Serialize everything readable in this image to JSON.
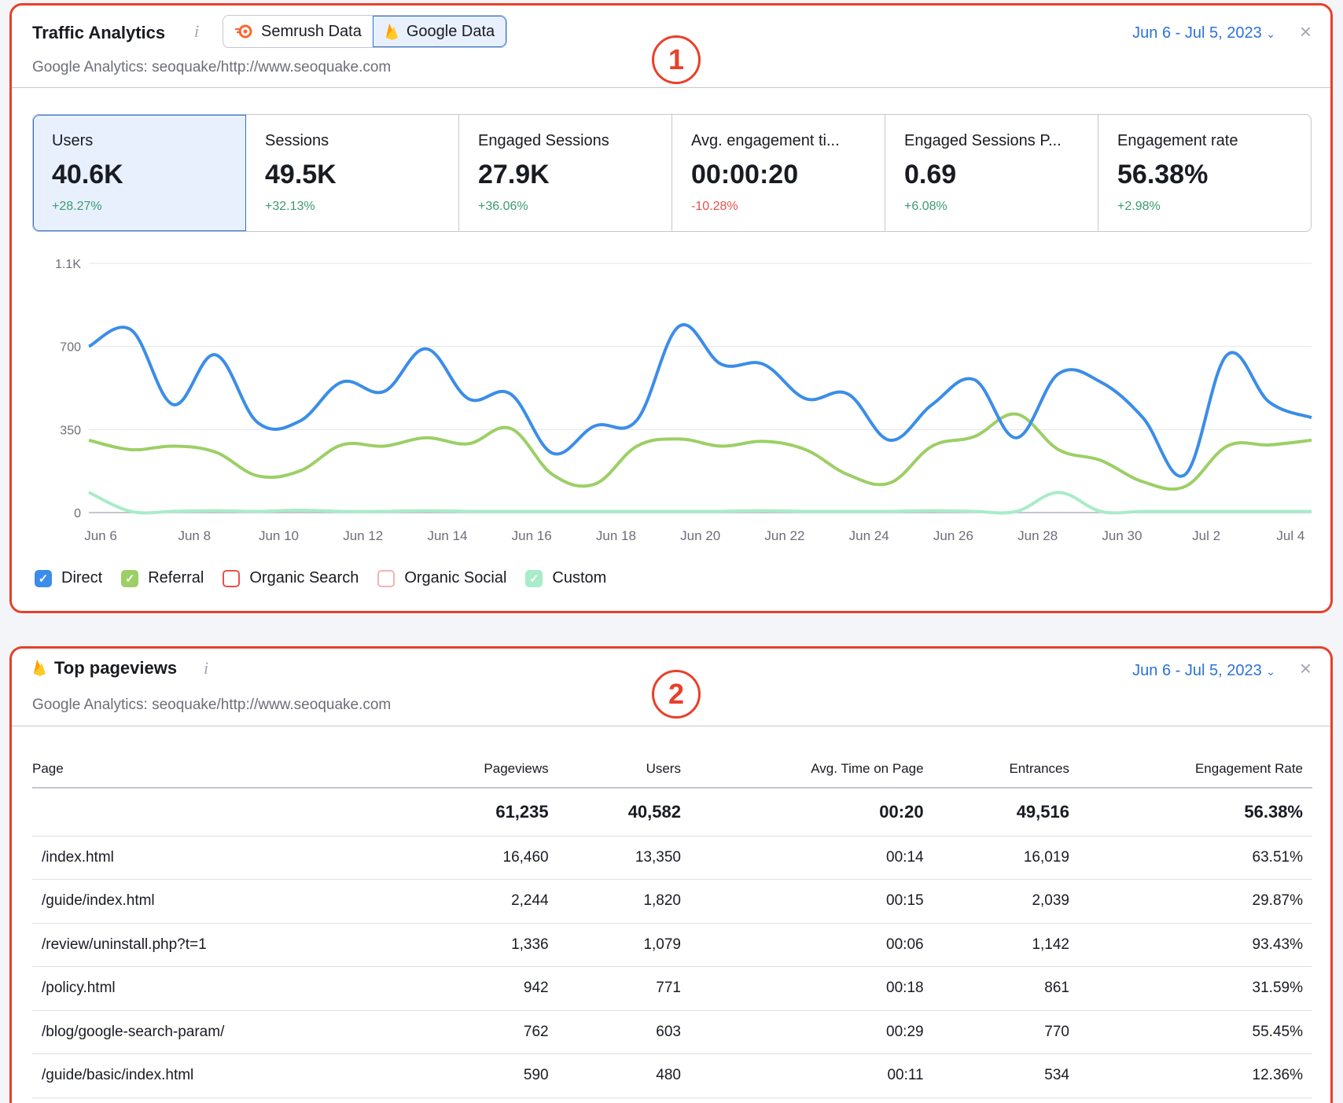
{
  "traffic": {
    "title": "Traffic Analytics",
    "info": "i",
    "toggle": [
      {
        "label": "Semrush Data",
        "icon": "semrush-logo-icon",
        "active": false
      },
      {
        "label": "Google Data",
        "icon": "firebase-logo-icon",
        "active": true
      }
    ],
    "subtitle": "Google Analytics: seoquake/http://www.seoquake.com",
    "date_range": "Jun 6 - Jul 5, 2023",
    "close": "×",
    "marker": "1",
    "metrics": [
      {
        "label": "Users",
        "value": "40.6K",
        "delta": "+28.27%",
        "trend": "up",
        "active": true
      },
      {
        "label": "Sessions",
        "value": "49.5K",
        "delta": "+32.13%",
        "trend": "up"
      },
      {
        "label": "Engaged Sessions",
        "value": "27.9K",
        "delta": "+36.06%",
        "trend": "up"
      },
      {
        "label": "Avg. engagement ti...",
        "value": "00:00:20",
        "delta": "-10.28%",
        "trend": "down"
      },
      {
        "label": "Engaged Sessions P...",
        "value": "0.69",
        "delta": "+6.08%",
        "trend": "up"
      },
      {
        "label": "Engagement rate",
        "value": "56.38%",
        "delta": "+2.98%",
        "trend": "up"
      }
    ],
    "colors": {
      "up": "#3a9b6f",
      "down": "#e8504a",
      "accent": "#2b72d9",
      "marker": "#e8402a"
    }
  },
  "chart_data": {
    "type": "line",
    "x": [
      "Jun 6",
      "Jun 7",
      "Jun 8",
      "Jun 9",
      "Jun 10",
      "Jun 11",
      "Jun 12",
      "Jun 13",
      "Jun 14",
      "Jun 15",
      "Jun 16",
      "Jun 17",
      "Jun 18",
      "Jun 19",
      "Jun 20",
      "Jun 21",
      "Jun 22",
      "Jun 23",
      "Jun 24",
      "Jun 25",
      "Jun 26",
      "Jun 27",
      "Jun 28",
      "Jun 29",
      "Jun 30",
      "Jul 1",
      "Jul 2",
      "Jul 3",
      "Jul 4",
      "Jul 5"
    ],
    "x_tick_labels": [
      "Jun 6",
      "Jun 8",
      "Jun 10",
      "Jun 12",
      "Jun 14",
      "Jun 16",
      "Jun 18",
      "Jun 20",
      "Jun 22",
      "Jun 24",
      "Jun 26",
      "Jun 28",
      "Jun 30",
      "Jul 2",
      "Jul 4"
    ],
    "y_ticks": [
      0,
      350,
      700,
      1050
    ],
    "y_tick_labels": [
      "0",
      "350",
      "700",
      "1.1K"
    ],
    "ylim": [
      0,
      1050
    ],
    "grid": true,
    "legend_position": "bottom-left",
    "series": [
      {
        "name": "Direct",
        "color": "#3b8de8",
        "checked": true,
        "values": [
          700,
          770,
          455,
          665,
          380,
          385,
          550,
          510,
          690,
          480,
          500,
          250,
          365,
          390,
          785,
          625,
          625,
          480,
          500,
          305,
          455,
          560,
          315,
          585,
          550,
          400,
          160,
          665,
          465,
          400
        ]
      },
      {
        "name": "Referral",
        "color": "#9ccf65",
        "checked": true,
        "values": [
          305,
          265,
          280,
          255,
          155,
          175,
          285,
          280,
          315,
          290,
          355,
          160,
          120,
          280,
          310,
          280,
          300,
          265,
          160,
          125,
          280,
          320,
          415,
          265,
          220,
          130,
          110,
          280,
          285,
          305
        ]
      },
      {
        "name": "Organic Search",
        "color": "#e8504a",
        "checked": false
      },
      {
        "name": "Organic Social",
        "color": "#f3b3b3",
        "checked": false
      },
      {
        "name": "Custom",
        "color": "#a8ecc8",
        "checked": true,
        "values": [
          85,
          5,
          5,
          8,
          5,
          10,
          5,
          5,
          8,
          5,
          5,
          5,
          5,
          5,
          5,
          5,
          8,
          5,
          5,
          5,
          8,
          5,
          5,
          85,
          5,
          5,
          5,
          5,
          5,
          5
        ]
      }
    ]
  },
  "pageviews": {
    "title": "Top pageviews",
    "info": "i",
    "subtitle": "Google Analytics: seoquake/http://www.seoquake.com",
    "date_range": "Jun 6 - Jul 5, 2023",
    "close": "×",
    "marker": "2",
    "columns": [
      "Page",
      "Pageviews",
      "Users",
      "Avg. Time on Page",
      "Entrances",
      "Engagement Rate"
    ],
    "totals": [
      "",
      "61,235",
      "40,582",
      "00:20",
      "49,516",
      "56.38%"
    ],
    "rows": [
      [
        "/index.html",
        "16,460",
        "13,350",
        "00:14",
        "16,019",
        "63.51%"
      ],
      [
        "/guide/index.html",
        "2,244",
        "1,820",
        "00:15",
        "2,039",
        "29.87%"
      ],
      [
        "/review/uninstall.php?t=1",
        "1,336",
        "1,079",
        "00:06",
        "1,142",
        "93.43%"
      ],
      [
        "/policy.html",
        "942",
        "771",
        "00:18",
        "861",
        "31.59%"
      ],
      [
        "/blog/google-search-param/",
        "762",
        "603",
        "00:29",
        "770",
        "55.45%"
      ],
      [
        "/guide/basic/index.html",
        "590",
        "480",
        "00:11",
        "534",
        "12.36%"
      ]
    ]
  }
}
